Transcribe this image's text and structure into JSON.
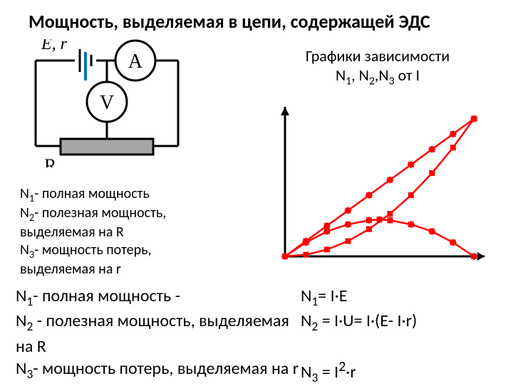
{
  "title": "Мощность, выделяемая в цепи, содержащей ЭДС",
  "circuit": {
    "source_label": "E, r",
    "ammeter": "A",
    "voltmeter": "V",
    "resistor": "R",
    "line_color": "#000000",
    "blue_marks_color": "#0070c0",
    "resistor_fill": "#a6a6a6"
  },
  "legend_right": {
    "line1": "Графики зависимости",
    "line2_pre": "N",
    "line2_s1": "1",
    "line2_mid1": ", N",
    "line2_s2": "2",
    "line2_mid2": ",N",
    "line2_s3": "3",
    "line2_post": "   от   I"
  },
  "legend_left": {
    "n1_a": "N",
    "n1_s": "1",
    "n1_b": "- полная мощность",
    "n2_a": "N",
    "n2_s": "2",
    "n2_b": "- полезная мощность,",
    "n2_c": "выделяемая на R",
    "n3_a": "N",
    "n3_s": "3",
    "n3_b": "- мощность потерь,",
    "n3_c": "выделяемая на r"
  },
  "graph": {
    "type": "line+scatter",
    "axis_color": "#000000",
    "marker_fill": "#ff0000",
    "marker_cross": "#ff0000",
    "line_color": "#ff0000",
    "N1": [
      [
        0,
        0
      ],
      [
        1,
        1.1
      ],
      [
        2,
        2.2
      ],
      [
        3,
        3.3
      ],
      [
        4,
        4.4
      ],
      [
        5,
        5.5
      ],
      [
        6,
        6.6
      ],
      [
        7,
        7.7
      ],
      [
        8,
        8.8
      ],
      [
        9,
        9.9
      ]
    ],
    "N2": [
      [
        0,
        0
      ],
      [
        1,
        1.0
      ],
      [
        2,
        1.8
      ],
      [
        3,
        2.3
      ],
      [
        4,
        2.6
      ],
      [
        4.5,
        2.65
      ],
      [
        5,
        2.6
      ],
      [
        6,
        2.3
      ],
      [
        7,
        1.8
      ],
      [
        8,
        1.0
      ],
      [
        9,
        0
      ]
    ],
    "N3": [
      [
        0,
        0
      ],
      [
        1,
        0.12
      ],
      [
        2,
        0.49
      ],
      [
        3,
        1.1
      ],
      [
        4,
        1.96
      ],
      [
        5,
        3.06
      ],
      [
        6,
        4.4
      ],
      [
        7,
        5.99
      ],
      [
        8,
        7.82
      ],
      [
        9,
        9.9
      ]
    ],
    "xlim": [
      0,
      9.5
    ],
    "ylim": [
      0,
      10.5
    ],
    "marker_size": 4
  },
  "equations": {
    "l1_a": "N",
    "l1_s": "1",
    "l1_b": "- полная мощность -",
    "l1_r_a": "N",
    "l1_r_s": "1",
    "l1_r_b": "= I·E",
    "l2_a": "N",
    "l2_s": "2",
    "l2_b": " - полезная мощность, выделяемая на R",
    "l2_r_a": "N",
    "l2_r_s": "2",
    "l2_r_b": " = I·U= I·(E- I·r)",
    "l3_a": "N",
    "l3_s": "3",
    "l3_b": "- мощность потерь, выделяемая на r",
    "l3_r_a": "N",
    "l3_r_s": "3",
    "l3_r_b": " = I",
    "l3_r_sup": "2",
    "l3_r_c": "·r"
  }
}
